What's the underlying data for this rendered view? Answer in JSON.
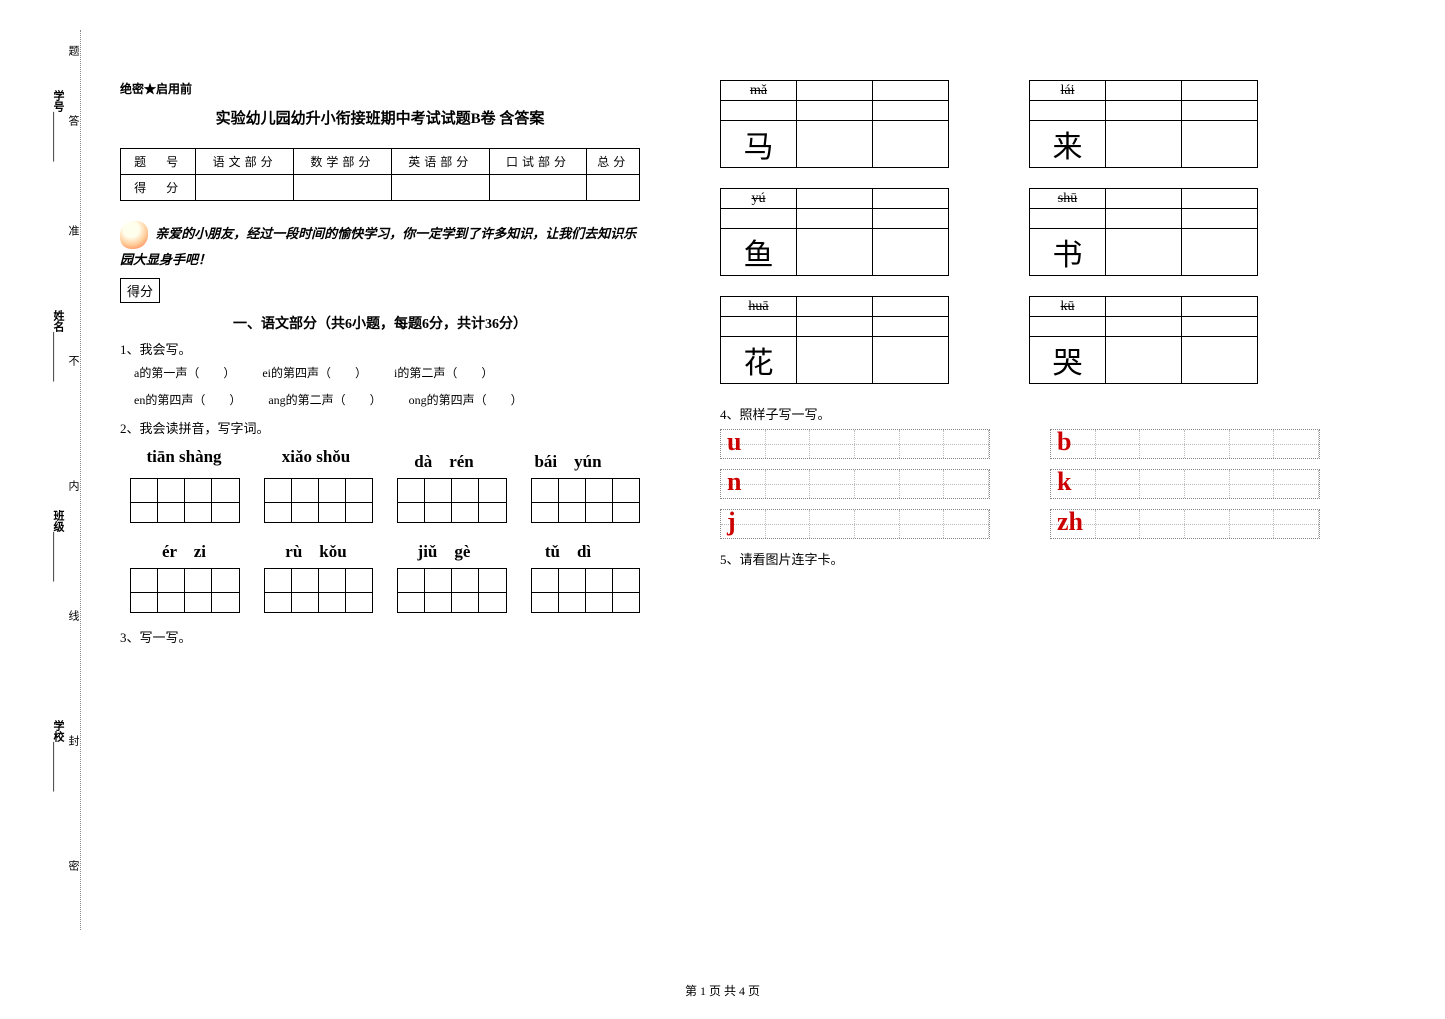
{
  "side": {
    "label_ti": "题",
    "label_da": "答",
    "label_zhun": "准",
    "label_bu": "不",
    "label_nei": "内",
    "label_xian": "线",
    "label_feng": "封",
    "label_mi": "密",
    "xuehao": "学号_________",
    "xingming": "姓名_________",
    "banji": "班级_________",
    "xuexiao": "学校_________"
  },
  "header": {
    "secret": "绝密★启用前",
    "title": "实验幼儿园幼升小衔接班期中考试试题B卷 含答案"
  },
  "score_table": {
    "cols": [
      "题　号",
      "语文部分",
      "数学部分",
      "英语部分",
      "口试部分",
      "总分"
    ],
    "row2_label": "得　分"
  },
  "intro": "亲爱的小朋友，经过一段时间的愉快学习，你一定学到了许多知识，让我们去知识乐园大显身手吧！",
  "defen": "得分",
  "section1_title": "一、语文部分（共6小题，每题6分，共计36分）",
  "q1": {
    "label": "1、我会写。",
    "items1": [
      "a的第一声（　　）",
      "ei的第四声（　　）",
      "i的第二声（　　）"
    ],
    "items2": [
      "en的第四声（　　）",
      "ang的第二声（　　）",
      "ong的第四声（　　）"
    ]
  },
  "q2": {
    "label": "2、我会读拼音，写字词。",
    "row1": [
      "tiān shàng",
      "xiǎo shǒu",
      "dà　rén",
      "bái　yún"
    ],
    "row2": [
      "ér　zi",
      "rù　kǒu",
      "jiǔ　gè",
      "tǔ　dì"
    ]
  },
  "q3": {
    "label": "3、写一写。",
    "pairs": [
      {
        "left": {
          "p": "mǎ",
          "h": "马"
        },
        "right": {
          "p": "lái",
          "h": "来"
        }
      },
      {
        "left": {
          "p": "yú",
          "h": "鱼"
        },
        "right": {
          "p": "shū",
          "h": "书"
        }
      },
      {
        "left": {
          "p": "huā",
          "h": "花"
        },
        "right": {
          "p": "kū",
          "h": "哭"
        }
      }
    ]
  },
  "q4": {
    "label": "4、照样子写一写。",
    "rows": [
      [
        "u",
        "b"
      ],
      [
        "n",
        "k"
      ],
      [
        "j",
        "zh"
      ]
    ]
  },
  "q5": {
    "label": "5、请看图片连字卡。"
  },
  "footer": "第 1 页 共 4 页",
  "colors": {
    "trace_letter": "#cc0000"
  }
}
